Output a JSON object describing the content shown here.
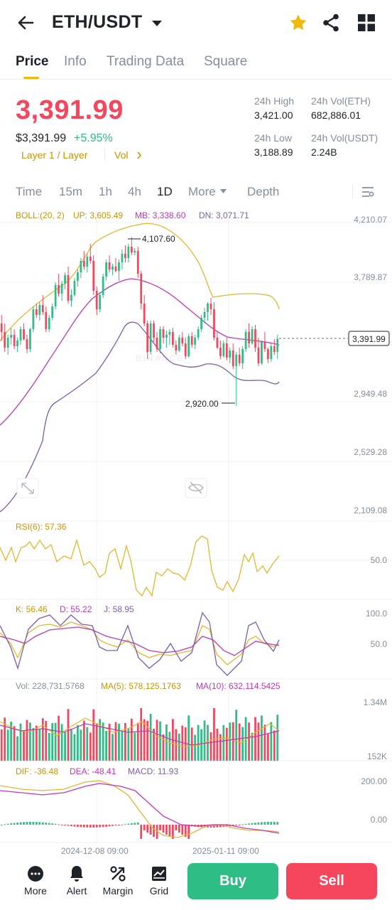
{
  "header": {
    "pair": "ETH/USDT"
  },
  "tabs": [
    {
      "label": "Price"
    },
    {
      "label": "Info"
    },
    {
      "label": "Trading Data"
    },
    {
      "label": "Square"
    }
  ],
  "ticker": {
    "last_price": "3,391.99",
    "usd_price": "$3,391.99",
    "change": "+5.95%",
    "tag1": "Layer 1 / Layer",
    "tag2": "Vol",
    "stats": {
      "high_label": "24h High",
      "high": "3,421.00",
      "low_label": "24h Low",
      "low": "3,188.89",
      "vol_eth_label": "24h Vol(ETH)",
      "vol_eth": "682,886.01",
      "vol_usdt_label": "24h Vol(USDT)",
      "vol_usdt": "2.24B"
    }
  },
  "timeframes": [
    {
      "label": "Time"
    },
    {
      "label": "15m"
    },
    {
      "label": "1h"
    },
    {
      "label": "4h"
    },
    {
      "label": "1D"
    },
    {
      "label": "More"
    },
    {
      "label": "Depth"
    }
  ],
  "indicators": {
    "boll": {
      "name": "BOLL:(20, 2)",
      "up": "UP: 3,605.49",
      "mb": "MB: 3,338.60",
      "dn": "DN: 3,071.71"
    },
    "rsi": {
      "label": "RSI(6): 57.36",
      "level": "50.0"
    },
    "kdj": {
      "k": "K: 56.46",
      "d": "D: 55.22",
      "j": "J: 58.95",
      "top": "100.0",
      "mid": "50.0"
    },
    "vol": {
      "label": "Vol: 228,731.5768",
      "ma5": "MA(5): 578,125.1763",
      "ma10": "MA(10): 632,114.5425",
      "top": "1.34M",
      "bottom": "152K"
    },
    "macd": {
      "dif": "DIF: -36.48",
      "dea": "DEA: -48.41",
      "macd": "MACD: 11.93",
      "top": "200.00",
      "zero": "0.00"
    }
  },
  "price_axis": [
    "4,210.07",
    "3,789.87",
    "2,949.48",
    "2,529.28",
    "2,109.08"
  ],
  "last_tag": "3,391.99",
  "high_mark": "4,107.60",
  "low_mark": "2,920.00",
  "watermark": "BINANCE",
  "dates": [
    "2024-12-08 09:00",
    "2025-01-11 09:00"
  ],
  "bottom_bar": {
    "more": "More",
    "alert": "Alert",
    "margin": "Margin",
    "grid": "Grid",
    "buy": "Buy",
    "sell": "Sell"
  },
  "colors": {
    "up": "#2ebd85",
    "down": "#f6465d",
    "accent": "#f0b90b",
    "text": "#1e2329",
    "muted": "#848e9c"
  },
  "chart_data": {
    "type": "candlestick",
    "ylim": [
      2109.08,
      4210.07
    ],
    "candles": [
      [
        3500,
        3560,
        3380,
        3440
      ],
      [
        3440,
        3500,
        3300,
        3330
      ],
      [
        3330,
        3420,
        3280,
        3400
      ],
      [
        3400,
        3470,
        3350,
        3420
      ],
      [
        3420,
        3460,
        3320,
        3340
      ],
      [
        3340,
        3400,
        3300,
        3380
      ],
      [
        3380,
        3480,
        3350,
        3460
      ],
      [
        3460,
        3500,
        3380,
        3390
      ],
      [
        3390,
        3420,
        3290,
        3320
      ],
      [
        3320,
        3470,
        3300,
        3460
      ],
      [
        3460,
        3620,
        3440,
        3600
      ],
      [
        3600,
        3640,
        3540,
        3560
      ],
      [
        3560,
        3650,
        3520,
        3630
      ],
      [
        3630,
        3700,
        3560,
        3580
      ],
      [
        3580,
        3620,
        3440,
        3460
      ],
      [
        3460,
        3560,
        3440,
        3540
      ],
      [
        3540,
        3640,
        3520,
        3620
      ],
      [
        3620,
        3790,
        3600,
        3770
      ],
      [
        3770,
        3850,
        3690,
        3710
      ],
      [
        3710,
        3800,
        3660,
        3780
      ],
      [
        3780,
        3860,
        3740,
        3840
      ],
      [
        3840,
        3900,
        3640,
        3660
      ],
      [
        3660,
        3740,
        3620,
        3700
      ],
      [
        3700,
        3820,
        3690,
        3800
      ],
      [
        3800,
        3880,
        3760,
        3860
      ],
      [
        3860,
        3960,
        3820,
        3940
      ],
      [
        3940,
        4010,
        3880,
        3900
      ],
      [
        3900,
        3990,
        3860,
        3970
      ],
      [
        3970,
        4060,
        3920,
        3940
      ],
      [
        3940,
        3980,
        3700,
        3730
      ],
      [
        3730,
        3760,
        3560,
        3600
      ],
      [
        3600,
        3720,
        3580,
        3700
      ],
      [
        3700,
        3850,
        3680,
        3830
      ],
      [
        3830,
        3950,
        3800,
        3930
      ],
      [
        3930,
        3980,
        3860,
        3880
      ],
      [
        3880,
        3920,
        3840,
        3900
      ],
      [
        3900,
        3960,
        3860,
        3870
      ],
      [
        3870,
        3950,
        3800,
        3930
      ],
      [
        3930,
        4020,
        3880,
        3990
      ],
      [
        3990,
        4050,
        3930,
        3960
      ],
      [
        3960,
        4060,
        3930,
        4040
      ],
      [
        4040,
        4107.6,
        3980,
        4000
      ],
      [
        4000,
        4030,
        3980,
        4010
      ],
      [
        4010,
        4040,
        3820,
        3850
      ],
      [
        3850,
        3870,
        3600,
        3640
      ],
      [
        3640,
        3700,
        3480,
        3500
      ],
      [
        3500,
        3520,
        3250,
        3300
      ],
      [
        3300,
        3520,
        3280,
        3500
      ],
      [
        3500,
        3520,
        3370,
        3400
      ],
      [
        3400,
        3440,
        3300,
        3320
      ],
      [
        3320,
        3480,
        3290,
        3460
      ],
      [
        3460,
        3480,
        3360,
        3400
      ],
      [
        3400,
        3450,
        3330,
        3420
      ],
      [
        3420,
        3460,
        3350,
        3440
      ],
      [
        3440,
        3470,
        3330,
        3350
      ],
      [
        3350,
        3380,
        3280,
        3310
      ],
      [
        3310,
        3420,
        3300,
        3400
      ],
      [
        3400,
        3440,
        3340,
        3360
      ],
      [
        3360,
        3400,
        3250,
        3270
      ],
      [
        3270,
        3430,
        3260,
        3410
      ],
      [
        3410,
        3440,
        3330,
        3350
      ],
      [
        3350,
        3420,
        3320,
        3400
      ],
      [
        3400,
        3480,
        3380,
        3460
      ],
      [
        3460,
        3560,
        3440,
        3540
      ],
      [
        3540,
        3610,
        3500,
        3580
      ],
      [
        3580,
        3650,
        3520,
        3640
      ],
      [
        3640,
        3680,
        3560,
        3600
      ],
      [
        3600,
        3650,
        3380,
        3400
      ],
      [
        3400,
        3440,
        3320,
        3330
      ],
      [
        3330,
        3380,
        3250,
        3270
      ],
      [
        3270,
        3380,
        3260,
        3360
      ],
      [
        3360,
        3400,
        3240,
        3260
      ],
      [
        3260,
        3330,
        3220,
        3310
      ],
      [
        3310,
        3360,
        3180,
        3200
      ],
      [
        3200,
        3300,
        2920,
        3280
      ],
      [
        3280,
        3330,
        3200,
        3220
      ],
      [
        3220,
        3340,
        3180,
        3320
      ],
      [
        3320,
        3460,
        3300,
        3440
      ],
      [
        3440,
        3500,
        3330,
        3360
      ],
      [
        3360,
        3480,
        3350,
        3460
      ],
      [
        3460,
        3490,
        3300,
        3330
      ],
      [
        3330,
        3400,
        3200,
        3220
      ],
      [
        3220,
        3380,
        3210,
        3370
      ],
      [
        3370,
        3440,
        3300,
        3320
      ],
      [
        3320,
        3330,
        3220,
        3250
      ],
      [
        3250,
        3360,
        3230,
        3340
      ],
      [
        3340,
        3390,
        3280,
        3300
      ],
      [
        3300,
        3421,
        3250,
        3392
      ]
    ]
  }
}
